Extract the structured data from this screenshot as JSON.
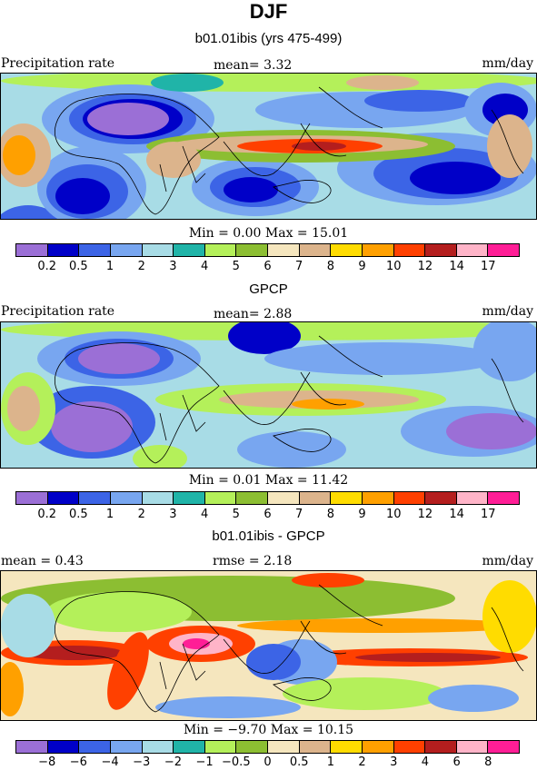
{
  "title": "DJF",
  "subtitle": "b01.01ibis (yrs 475-499)",
  "panels": [
    {
      "heading": "",
      "left_label": "Precipitation rate",
      "center_label": "mean=   3.32",
      "right_label": "mm/day",
      "minmax": "Min =   0.00 Max =   15.01"
    },
    {
      "heading": "GPCP",
      "left_label": "Precipitation rate",
      "center_label": "mean=   2.88",
      "right_label": "mm/day",
      "minmax": "Min =   0.01 Max =   11.42"
    },
    {
      "heading": "b01.01ibis - GPCP",
      "left_label": "mean =     0.43",
      "center_label": "rmse =     2.18",
      "right_label": "mm/day",
      "minmax": "Min =   −9.70 Max =   10.15"
    }
  ],
  "colorbar_colors": [
    "#9b6fd6",
    "#0000c8",
    "#3c64e6",
    "#78a6f0",
    "#a8dce6",
    "#20b4a8",
    "#b4f05a",
    "#8cbe32",
    "#f5e6be",
    "#dcb48c",
    "#ffdc00",
    "#ffa000",
    "#ff4000",
    "#b41e1e",
    "#ffb4c8",
    "#ff1e96"
  ],
  "precip_ticks": [
    "0.2",
    "0.5",
    "1",
    "2",
    "3",
    "4",
    "5",
    "6",
    "7",
    "8",
    "9",
    "10",
    "12",
    "14",
    "17"
  ],
  "diff_ticks": [
    "−8",
    "−6",
    "−4",
    "−3",
    "−2",
    "−1",
    "−0.5",
    "0",
    "0.5",
    "1",
    "2",
    "3",
    "4",
    "6",
    "8"
  ]
}
